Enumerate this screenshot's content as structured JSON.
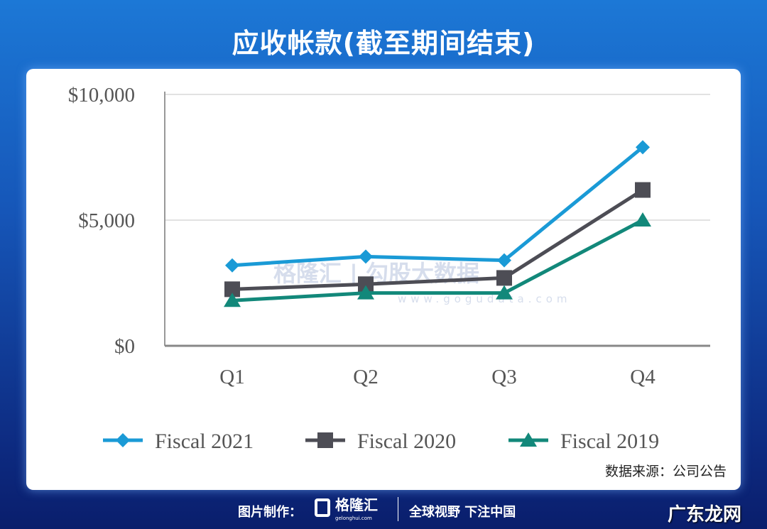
{
  "title": "应收帐款(截至期间结束)",
  "source": "数据来源：公司公告",
  "footer": {
    "made_by": "图片制作：",
    "logo": "格隆汇",
    "logo_sub": "gelonghui.com",
    "slogan": "全球视野 下注中国"
  },
  "watermarks": {
    "center": "格隆汇 | 勾股大数据",
    "center_url": "www.gogudata.com",
    "corner": "广东龙网"
  },
  "chart_data": {
    "type": "line",
    "categories": [
      "Q1",
      "Q2",
      "Q3",
      "Q4"
    ],
    "ylim": [
      0,
      10000
    ],
    "yticks": [
      0,
      5000,
      10000
    ],
    "ytick_labels": [
      "$0",
      "$5,000",
      "$10,000"
    ],
    "grid": true,
    "legend": "bottom",
    "series": [
      {
        "name": "Fiscal 2021",
        "values": [
          3200,
          3550,
          3400,
          7900
        ],
        "color": "#1a9ad6",
        "marker": "diamond"
      },
      {
        "name": "Fiscal 2020",
        "values": [
          2250,
          2450,
          2700,
          6200
        ],
        "color": "#4d4d55",
        "marker": "square"
      },
      {
        "name": "Fiscal 2019",
        "values": [
          1800,
          2100,
          2100,
          5000
        ],
        "color": "#12887a",
        "marker": "triangle"
      }
    ]
  }
}
